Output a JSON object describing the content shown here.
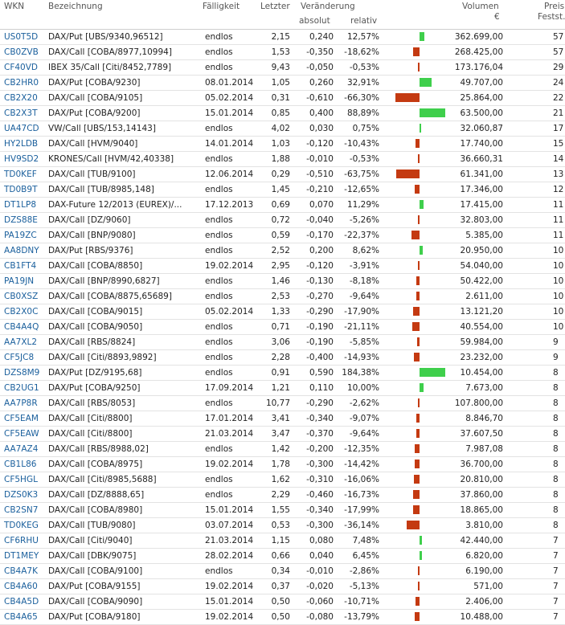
{
  "header": {
    "wkn": "WKN",
    "bezeichnung": "Bezeichnung",
    "faelligkeit": "Fälligkeit",
    "letzter": "Letzter",
    "veraenderung": "Veränderung",
    "absolut": "absolut",
    "relativ": "relativ",
    "volumen": "Volumen",
    "volumen_unit": "€",
    "preis": "Preis",
    "feststellung": "Festst."
  },
  "rows": [
    {
      "wkn": "US0T5D",
      "bez": "DAX/Put [UBS/9340,96512]",
      "fae": "endlos",
      "let": "2,15",
      "abs": "0,240",
      "rel": "12,57%",
      "pct": 12.57,
      "vol": "362.699,00",
      "pf": "57"
    },
    {
      "wkn": "CB0ZVB",
      "bez": "DAX/Call [COBA/8977,10994]",
      "fae": "endlos",
      "let": "1,53",
      "abs": "-0,350",
      "rel": "-18,62%",
      "pct": -18.62,
      "vol": "268.425,00",
      "pf": "57"
    },
    {
      "wkn": "CF40VD",
      "bez": "IBEX 35/Call [Citi/8452,7789]",
      "fae": "endlos",
      "let": "9,43",
      "abs": "-0,050",
      "rel": "-0,53%",
      "pct": -0.53,
      "vol": "173.176,04",
      "pf": "29"
    },
    {
      "wkn": "CB2HR0",
      "bez": "DAX/Put [COBA/9230]",
      "fae": "08.01.2014",
      "let": "1,05",
      "abs": "0,260",
      "rel": "32,91%",
      "pct": 32.91,
      "vol": "49.707,00",
      "pf": "24"
    },
    {
      "wkn": "CB2X20",
      "bez": "DAX/Call [COBA/9105]",
      "fae": "05.02.2014",
      "let": "0,31",
      "abs": "-0,610",
      "rel": "-66,30%",
      "pct": -66.3,
      "vol": "25.864,00",
      "pf": "22"
    },
    {
      "wkn": "CB2X3T",
      "bez": "DAX/Put [COBA/9200]",
      "fae": "15.01.2014",
      "let": "0,85",
      "abs": "0,400",
      "rel": "88,89%",
      "pct": 88.89,
      "vol": "63.500,00",
      "pf": "21"
    },
    {
      "wkn": "UA47CD",
      "bez": "VW/Call [UBS/153,14143]",
      "fae": "endlos",
      "let": "4,02",
      "abs": "0,030",
      "rel": "0,75%",
      "pct": 0.75,
      "vol": "32.060,87",
      "pf": "17"
    },
    {
      "wkn": "HY2LDB",
      "bez": "DAX/Call [HVM/9040]",
      "fae": "14.01.2014",
      "let": "1,03",
      "abs": "-0,120",
      "rel": "-10,43%",
      "pct": -10.43,
      "vol": "17.740,00",
      "pf": "15"
    },
    {
      "wkn": "HV9SD2",
      "bez": "KRONES/Call [HVM/42,40338]",
      "fae": "endlos",
      "let": "1,88",
      "abs": "-0,010",
      "rel": "-0,53%",
      "pct": -0.53,
      "vol": "36.660,31",
      "pf": "14"
    },
    {
      "wkn": "TD0KEF",
      "bez": "DAX/Call [TUB/9100]",
      "fae": "12.06.2014",
      "let": "0,29",
      "abs": "-0,510",
      "rel": "-63,75%",
      "pct": -63.75,
      "vol": "61.341,00",
      "pf": "13"
    },
    {
      "wkn": "TD0B9T",
      "bez": "DAX/Call [TUB/8985,148]",
      "fae": "endlos",
      "let": "1,45",
      "abs": "-0,210",
      "rel": "-12,65%",
      "pct": -12.65,
      "vol": "17.346,00",
      "pf": "12"
    },
    {
      "wkn": "DT1LP8",
      "bez": "DAX-Future 12/2013 (EUREX)/...",
      "fae": "17.12.2013",
      "let": "0,69",
      "abs": "0,070",
      "rel": "11,29%",
      "pct": 11.29,
      "vol": "17.415,00",
      "pf": "11"
    },
    {
      "wkn": "DZS88E",
      "bez": "DAX/Call [DZ/9060]",
      "fae": "endlos",
      "let": "0,72",
      "abs": "-0,040",
      "rel": "-5,26%",
      "pct": -5.26,
      "vol": "32.803,00",
      "pf": "11"
    },
    {
      "wkn": "PA19ZC",
      "bez": "DAX/Call [BNP/9080]",
      "fae": "endlos",
      "let": "0,59",
      "abs": "-0,170",
      "rel": "-22,37%",
      "pct": -22.37,
      "vol": "5.385,00",
      "pf": "11"
    },
    {
      "wkn": "AA8DNY",
      "bez": "DAX/Put [RBS/9376]",
      "fae": "endlos",
      "let": "2,52",
      "abs": "0,200",
      "rel": "8,62%",
      "pct": 8.62,
      "vol": "20.950,00",
      "pf": "10"
    },
    {
      "wkn": "CB1FT4",
      "bez": "DAX/Call [COBA/8850]",
      "fae": "19.02.2014",
      "let": "2,95",
      "abs": "-0,120",
      "rel": "-3,91%",
      "pct": -3.91,
      "vol": "54.040,00",
      "pf": "10"
    },
    {
      "wkn": "PA19JN",
      "bez": "DAX/Call [BNP/8990,6827]",
      "fae": "endlos",
      "let": "1,46",
      "abs": "-0,130",
      "rel": "-8,18%",
      "pct": -8.18,
      "vol": "50.422,00",
      "pf": "10"
    },
    {
      "wkn": "CB0XSZ",
      "bez": "DAX/Call [COBA/8875,65689]",
      "fae": "endlos",
      "let": "2,53",
      "abs": "-0,270",
      "rel": "-9,64%",
      "pct": -9.64,
      "vol": "2.611,00",
      "pf": "10"
    },
    {
      "wkn": "CB2X0C",
      "bez": "DAX/Call [COBA/9015]",
      "fae": "05.02.2014",
      "let": "1,33",
      "abs": "-0,290",
      "rel": "-17,90%",
      "pct": -17.9,
      "vol": "13.121,20",
      "pf": "10"
    },
    {
      "wkn": "CB4A4Q",
      "bez": "DAX/Call [COBA/9050]",
      "fae": "endlos",
      "let": "0,71",
      "abs": "-0,190",
      "rel": "-21,11%",
      "pct": -21.11,
      "vol": "40.554,00",
      "pf": "10"
    },
    {
      "wkn": "AA7XL2",
      "bez": "DAX/Call [RBS/8824]",
      "fae": "endlos",
      "let": "3,06",
      "abs": "-0,190",
      "rel": "-5,85%",
      "pct": -5.85,
      "vol": "59.984,00",
      "pf": "9"
    },
    {
      "wkn": "CF5JC8",
      "bez": "DAX/Call [Citi/8893,9892]",
      "fae": "endlos",
      "let": "2,28",
      "abs": "-0,400",
      "rel": "-14,93%",
      "pct": -14.93,
      "vol": "23.232,00",
      "pf": "9"
    },
    {
      "wkn": "DZS8M9",
      "bez": "DAX/Put [DZ/9195,68]",
      "fae": "endlos",
      "let": "0,91",
      "abs": "0,590",
      "rel": "184,38%",
      "pct": 184.38,
      "vol": "10.454,00",
      "pf": "8"
    },
    {
      "wkn": "CB2UG1",
      "bez": "DAX/Put [COBA/9250]",
      "fae": "17.09.2014",
      "let": "1,21",
      "abs": "0,110",
      "rel": "10,00%",
      "pct": 10.0,
      "vol": "7.673,00",
      "pf": "8"
    },
    {
      "wkn": "AA7P8R",
      "bez": "DAX/Call [RBS/8053]",
      "fae": "endlos",
      "let": "10,77",
      "abs": "-0,290",
      "rel": "-2,62%",
      "pct": -2.62,
      "vol": "107.800,00",
      "pf": "8"
    },
    {
      "wkn": "CF5EAM",
      "bez": "DAX/Call [Citi/8800]",
      "fae": "17.01.2014",
      "let": "3,41",
      "abs": "-0,340",
      "rel": "-9,07%",
      "pct": -9.07,
      "vol": "8.846,70",
      "pf": "8"
    },
    {
      "wkn": "CF5EAW",
      "bez": "DAX/Call [Citi/8800]",
      "fae": "21.03.2014",
      "let": "3,47",
      "abs": "-0,370",
      "rel": "-9,64%",
      "pct": -9.64,
      "vol": "37.607,50",
      "pf": "8"
    },
    {
      "wkn": "AA7AZ4",
      "bez": "DAX/Call [RBS/8988,02]",
      "fae": "endlos",
      "let": "1,42",
      "abs": "-0,200",
      "rel": "-12,35%",
      "pct": -12.35,
      "vol": "7.987,08",
      "pf": "8"
    },
    {
      "wkn": "CB1L86",
      "bez": "DAX/Call [COBA/8975]",
      "fae": "19.02.2014",
      "let": "1,78",
      "abs": "-0,300",
      "rel": "-14,42%",
      "pct": -14.42,
      "vol": "36.700,00",
      "pf": "8"
    },
    {
      "wkn": "CF5HGL",
      "bez": "DAX/Call [Citi/8985,5688]",
      "fae": "endlos",
      "let": "1,62",
      "abs": "-0,310",
      "rel": "-16,06%",
      "pct": -16.06,
      "vol": "20.810,00",
      "pf": "8"
    },
    {
      "wkn": "DZS0K3",
      "bez": "DAX/Call [DZ/8888,65]",
      "fae": "endlos",
      "let": "2,29",
      "abs": "-0,460",
      "rel": "-16,73%",
      "pct": -16.73,
      "vol": "37.860,00",
      "pf": "8"
    },
    {
      "wkn": "CB2SN7",
      "bez": "DAX/Call [COBA/8980]",
      "fae": "15.01.2014",
      "let": "1,55",
      "abs": "-0,340",
      "rel": "-17,99%",
      "pct": -17.99,
      "vol": "18.865,00",
      "pf": "8"
    },
    {
      "wkn": "TD0KEG",
      "bez": "DAX/Call [TUB/9080]",
      "fae": "03.07.2014",
      "let": "0,53",
      "abs": "-0,300",
      "rel": "-36,14%",
      "pct": -36.14,
      "vol": "3.810,00",
      "pf": "8"
    },
    {
      "wkn": "CF6RHU",
      "bez": "DAX/Call [Citi/9040]",
      "fae": "21.03.2014",
      "let": "1,15",
      "abs": "0,080",
      "rel": "7,48%",
      "pct": 7.48,
      "vol": "42.440,00",
      "pf": "7"
    },
    {
      "wkn": "DT1MEY",
      "bez": "DAX/Call [DBK/9075]",
      "fae": "28.02.2014",
      "let": "0,66",
      "abs": "0,040",
      "rel": "6,45%",
      "pct": 6.45,
      "vol": "6.820,00",
      "pf": "7"
    },
    {
      "wkn": "CB4A7K",
      "bez": "DAX/Call [COBA/9100]",
      "fae": "endlos",
      "let": "0,34",
      "abs": "-0,010",
      "rel": "-2,86%",
      "pct": -2.86,
      "vol": "6.190,00",
      "pf": "7"
    },
    {
      "wkn": "CB4A60",
      "bez": "DAX/Put [COBA/9155]",
      "fae": "19.02.2014",
      "let": "0,37",
      "abs": "-0,020",
      "rel": "-5,13%",
      "pct": -5.13,
      "vol": "571,00",
      "pf": "7"
    },
    {
      "wkn": "CB4A5D",
      "bez": "DAX/Call [COBA/9090]",
      "fae": "15.01.2014",
      "let": "0,50",
      "abs": "-0,060",
      "rel": "-10,71%",
      "pct": -10.71,
      "vol": "2.406,00",
      "pf": "7"
    },
    {
      "wkn": "CB4A65",
      "bez": "DAX/Put [COBA/9180]",
      "fae": "19.02.2014",
      "let": "0,50",
      "abs": "-0,080",
      "rel": "-13,79%",
      "pct": -13.79,
      "vol": "10.488,00",
      "pf": "7"
    }
  ],
  "colors": {
    "positive_bar": "#3fcf4c",
    "negative_bar": "#c43a11",
    "link": "#1a5f9c"
  }
}
